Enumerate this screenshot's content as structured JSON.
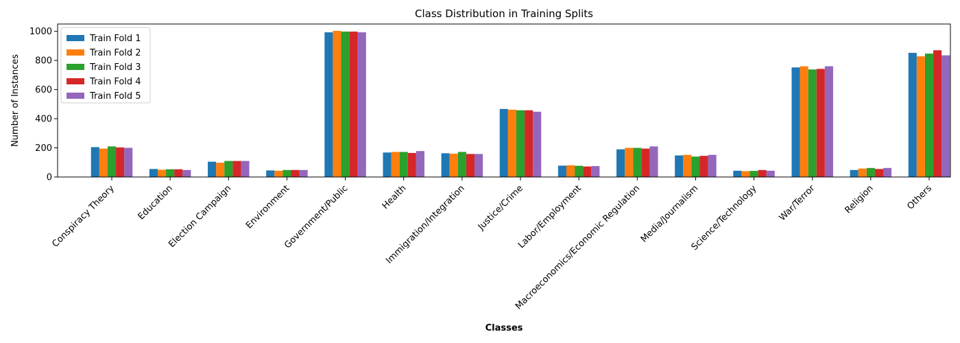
{
  "chart_data": {
    "type": "bar",
    "title": "Class Distribution in Training Splits",
    "xlabel": "Classes",
    "ylabel": "Number of Instances",
    "ylim": [
      0,
      1050
    ],
    "yticks": [
      0,
      200,
      400,
      600,
      800,
      1000
    ],
    "grid": false,
    "legend_position": "top-left",
    "categories": [
      "Conspiracy Theory",
      "Education",
      "Election Campaign",
      "Environment",
      "Government/Public",
      "Health",
      "Immigration/Integration",
      "Justice/Crime",
      "Labor/Employment",
      "Macroeconomics/Economic Regulation",
      "Media/Journalism",
      "Science/Technology",
      "War/Terror",
      "Religion",
      "Others"
    ],
    "series": [
      {
        "name": "Train Fold 1",
        "color": "#1f77b4",
        "values": [
          205,
          55,
          105,
          45,
          993,
          168,
          163,
          467,
          78,
          190,
          148,
          43,
          752,
          48,
          852
        ]
      },
      {
        "name": "Train Fold 2",
        "color": "#ff7f0e",
        "values": [
          195,
          50,
          98,
          43,
          1003,
          172,
          160,
          462,
          80,
          200,
          152,
          40,
          760,
          58,
          828
        ]
      },
      {
        "name": "Train Fold 3",
        "color": "#2ca02c",
        "values": [
          210,
          53,
          110,
          48,
          998,
          172,
          172,
          458,
          77,
          200,
          140,
          42,
          738,
          62,
          847
        ]
      },
      {
        "name": "Train Fold 4",
        "color": "#d62728",
        "values": [
          203,
          53,
          110,
          48,
          998,
          165,
          158,
          458,
          72,
          195,
          145,
          48,
          742,
          55,
          870
        ]
      },
      {
        "name": "Train Fold 5",
        "color": "#9467bd",
        "values": [
          200,
          48,
          110,
          48,
          993,
          178,
          158,
          448,
          75,
          210,
          152,
          43,
          760,
          62,
          835
        ]
      }
    ]
  }
}
